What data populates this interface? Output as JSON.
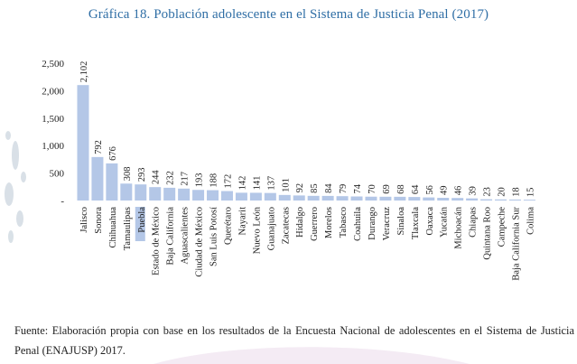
{
  "chart_data": {
    "type": "bar",
    "title": "Gráfica 18. Población adolescente en el Sistema de Justicia Penal (2017)",
    "xlabel": "",
    "ylabel": "",
    "ylim": [
      0,
      2500
    ],
    "yticks": [
      "-",
      "500",
      "1,000",
      "1,500",
      "2,000",
      "2,500"
    ],
    "grid": false,
    "legend": "none",
    "bar_color": "#b4c7e7",
    "highlight_category": "Puebla",
    "highlight_color": "#b4c7e7",
    "categories": [
      "Jalisco",
      "Sonora",
      "Chihuahua",
      "Tamaulipas",
      "Puebla",
      "Estado de México",
      "Baja California",
      "Aguascalientes",
      "Ciudad de México",
      "San Luis Potosí",
      "Querétaro",
      "Nayarit",
      "Nuevo León",
      "Guanajuato",
      "Zacatecas",
      "Hidalgo",
      "Guerrero",
      "Morelos",
      "Tabasco",
      "Coahuila",
      "Durango",
      "Veracruz",
      "Sinaloa",
      "Tlaxcala",
      "Oaxaca",
      "Yucatán",
      "Michoacán",
      "Chiapas",
      "Quintana Roo",
      "Campeche",
      "Baja California Sur",
      "Colima"
    ],
    "values": [
      2102,
      792,
      676,
      308,
      293,
      244,
      232,
      217,
      193,
      188,
      172,
      142,
      141,
      137,
      101,
      92,
      85,
      84,
      79,
      74,
      70,
      69,
      68,
      64,
      56,
      49,
      46,
      39,
      23,
      20,
      18,
      15
    ],
    "value_labels": [
      "2,102",
      "792",
      "676",
      "308",
      "293",
      "244",
      "232",
      "217",
      "193",
      "188",
      "172",
      "142",
      "141",
      "137",
      "101",
      "92",
      "85",
      "84",
      "79",
      "74",
      "70",
      "69",
      "68",
      "64",
      "56",
      "49",
      "46",
      "39",
      "23",
      "20",
      "18",
      "15"
    ]
  },
  "source_note": "Fuente: Elaboración propia con base en los resultados de la Encuesta Nacional de adolescentes en el Sistema de Justicia Penal (ENAJUSP) 2017."
}
